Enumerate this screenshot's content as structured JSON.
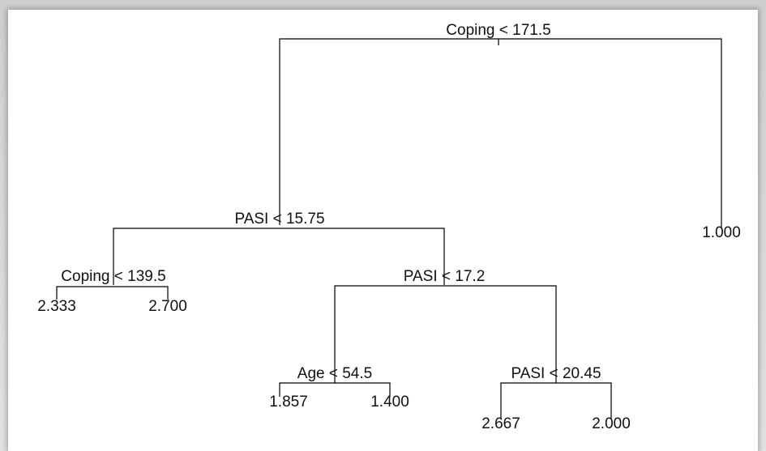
{
  "nodes": [
    {
      "label": "Coping < 171.5"
    },
    {
      "label": "PASI < 15.75"
    },
    {
      "label": "1.000"
    },
    {
      "label": "Coping < 139.5"
    },
    {
      "label": "PASI < 17.2"
    },
    {
      "label": "2.333"
    },
    {
      "label": "2.700"
    },
    {
      "label": "Age < 54.5"
    },
    {
      "label": "PASI < 20.45"
    },
    {
      "label": "1.857"
    },
    {
      "label": "1.400"
    },
    {
      "label": "2.667"
    },
    {
      "label": "2.000"
    }
  ]
}
